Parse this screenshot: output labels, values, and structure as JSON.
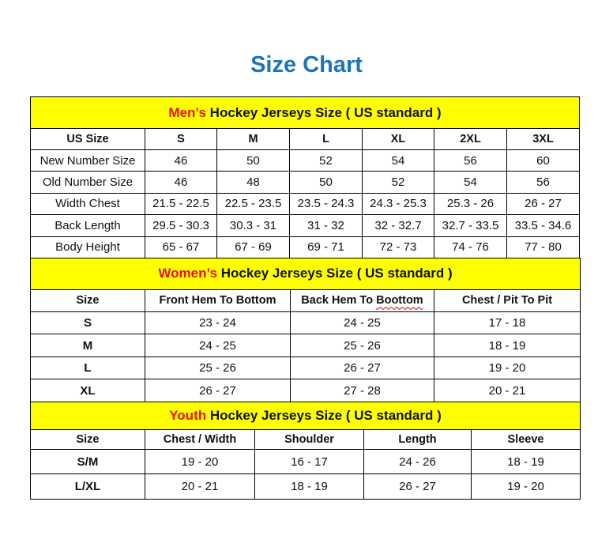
{
  "title": "Size Chart",
  "men": {
    "heading_highlight": "Men’s",
    "heading_rest": " Hockey Jerseys Size ( US standard )",
    "headers": [
      "US Size",
      "S",
      "M",
      "L",
      "XL",
      "2XL",
      "3XL"
    ],
    "rows": [
      [
        "New Number Size",
        "46",
        "50",
        "52",
        "54",
        "56",
        "60"
      ],
      [
        "Old Number Size",
        "46",
        "48",
        "50",
        "52",
        "54",
        "56"
      ],
      [
        "Width Chest",
        "21.5 - 22.5",
        "22.5 - 23.5",
        "23.5 - 24.3",
        "24.3 - 25.3",
        "25.3 - 26",
        "26 - 27"
      ],
      [
        "Back Length",
        "29.5 - 30.3",
        "30.3 - 31",
        "31 - 32",
        "32 - 32.7",
        "32.7 - 33.5",
        "33.5 - 34.6"
      ],
      [
        "Body Height",
        "65 - 67",
        "67 - 69",
        "69 - 71",
        "72 - 73",
        "74 - 76",
        "77 - 80"
      ]
    ]
  },
  "women": {
    "heading_highlight": "Women’s",
    "heading_rest": " Hockey Jerseys Size ( US standard )",
    "headers": [
      "Size",
      "Front Hem To Bottom",
      "Back Hem To Boottom",
      "Chest / Pit To Pit"
    ],
    "rows": [
      [
        "S",
        "23 - 24",
        "24 - 25",
        "17 - 18"
      ],
      [
        "M",
        "24 - 25",
        "25 - 26",
        "18 - 19"
      ],
      [
        "L",
        "25 - 26",
        "26 - 27",
        "19 - 20"
      ],
      [
        "XL",
        "26 - 27",
        "27 - 28",
        "20 - 21"
      ]
    ]
  },
  "youth": {
    "heading_highlight": "Youth",
    "heading_rest": " Hockey Jerseys Size ( US standard )",
    "headers": [
      "Size",
      "Chest / Width",
      "Shoulder",
      "Length",
      "Sleeve"
    ],
    "rows": [
      [
        "S/M",
        "19 - 20",
        "16 - 17",
        "24 - 26",
        "18 - 19"
      ],
      [
        "L/XL",
        "20 - 21",
        "18 - 19",
        "26 - 27",
        "19 - 20"
      ]
    ]
  },
  "colors": {
    "title": "#1a75bc",
    "band": "#ffff00",
    "highlight": "#e8111a"
  }
}
